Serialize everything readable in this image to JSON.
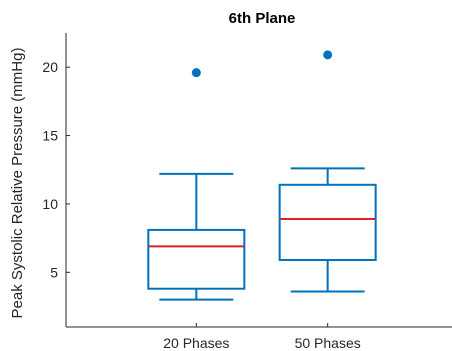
{
  "chart_data": {
    "type": "box",
    "title": "6th Plane",
    "xlabel": "",
    "ylabel": "Peak Systolic Relative Pressure (mmHg)",
    "ylim": [
      1.0,
      22.5
    ],
    "yticks": [
      5,
      10,
      15,
      20
    ],
    "categories": [
      "20 Phases",
      "50 Phases"
    ],
    "boxes": [
      {
        "category": "20 Phases",
        "whisker_low": 3.0,
        "q1": 3.8,
        "median": 6.9,
        "q3": 8.1,
        "whisker_high": 12.2,
        "outliers": [
          19.6
        ]
      },
      {
        "category": "50 Phases",
        "whisker_low": 3.6,
        "q1": 5.9,
        "median": 8.9,
        "q3": 11.4,
        "whisker_high": 12.6,
        "outliers": [
          20.9
        ]
      }
    ],
    "colors": {
      "box": "#0072BD",
      "median": "#D7262B",
      "axis": "#262626",
      "outlier": "#0072BD"
    },
    "grid": false,
    "legend": "none"
  }
}
